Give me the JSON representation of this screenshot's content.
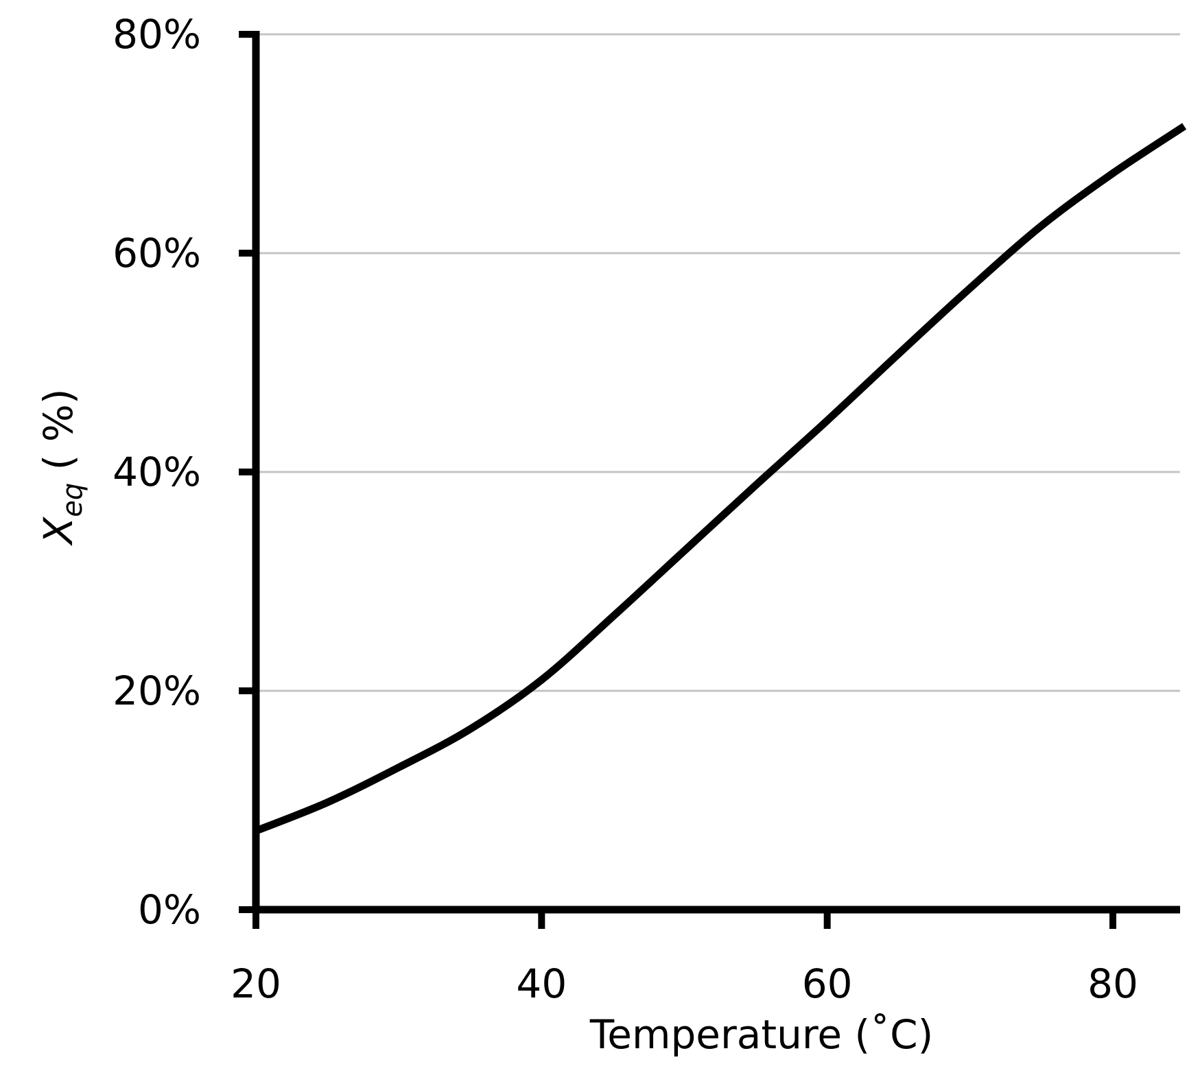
{
  "chart_data": {
    "type": "line",
    "title": "",
    "xlabel": "Temperature (˚C)",
    "ylabel_main": "X",
    "ylabel_sub": "eq",
    "ylabel_unit": " ( %)",
    "xlim": [
      20,
      85
    ],
    "ylim": [
      0,
      80
    ],
    "x_ticks": [
      20,
      40,
      60,
      80
    ],
    "x_tick_labels": [
      "20",
      "40",
      "60",
      "80"
    ],
    "y_ticks": [
      0,
      20,
      40,
      60,
      80
    ],
    "y_tick_labels": [
      "0%",
      "20%",
      "40%",
      "60%",
      "80%"
    ],
    "grid": "horizontal",
    "legend": "none",
    "series": [
      {
        "color": "#000000",
        "x": [
          20,
          25,
          30,
          35,
          40,
          45,
          50,
          55,
          60,
          65,
          70,
          75,
          80,
          85
        ],
        "y": [
          7.2,
          9.8,
          13.0,
          16.5,
          21.0,
          26.8,
          32.8,
          38.8,
          44.7,
          50.8,
          56.8,
          62.5,
          67.3,
          71.6
        ]
      }
    ]
  }
}
